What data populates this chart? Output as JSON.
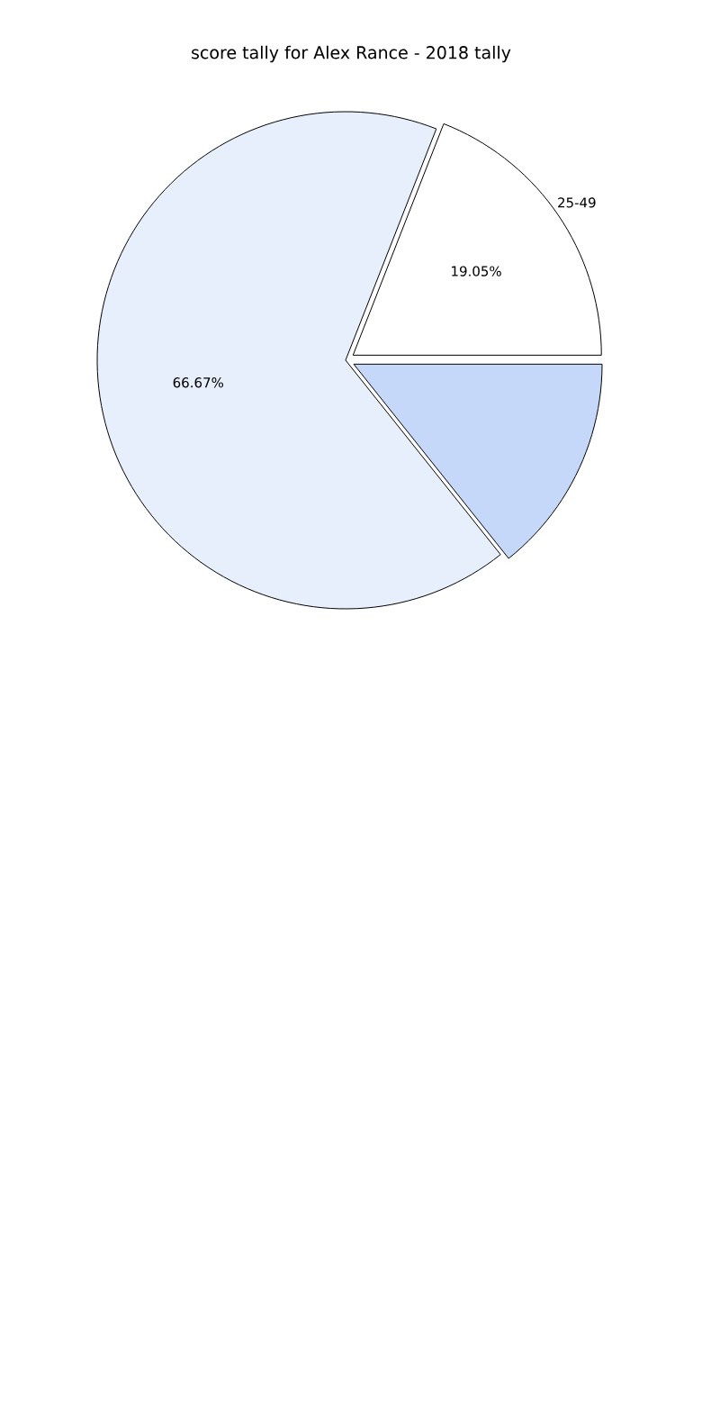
{
  "chart_data": {
    "type": "pie",
    "title": "score tally for Alex Rance - 2018 tally",
    "categories": [
      "25-49",
      null,
      null
    ],
    "values": [
      19.05,
      66.67,
      14.28
    ],
    "colors": [
      "#ffffff",
      "#e8effc",
      "#c6d8fa"
    ],
    "value_labels": [
      "19.05%",
      "66.67%",
      null
    ]
  }
}
